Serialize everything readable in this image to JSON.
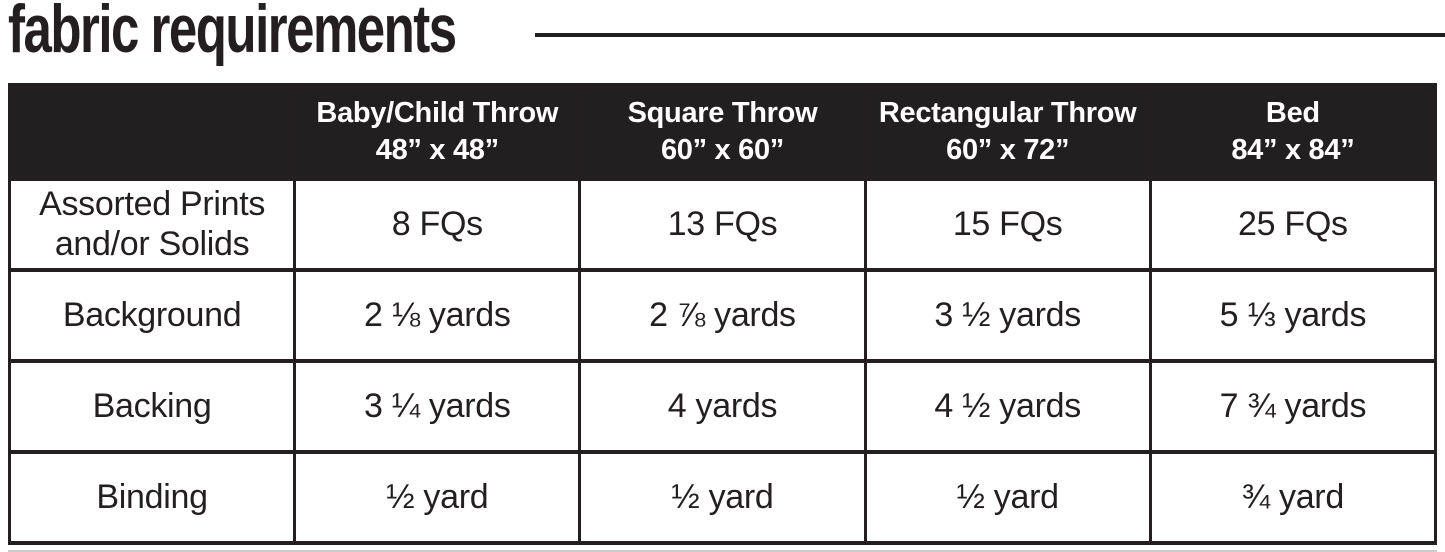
{
  "page": {
    "title": "fabric requirements"
  },
  "colors": {
    "header_bg": "#221f20",
    "text": "#231f20",
    "border": "#231f20",
    "header_text": "#ffffff"
  },
  "table": {
    "columns": [
      {
        "label": "Baby/Child Throw\n48” x 48”"
      },
      {
        "label": "Square Throw\n60” x 60”"
      },
      {
        "label": "Rectangular Throw\n60” x 72”"
      },
      {
        "label": "Bed\n84” x 84”"
      }
    ],
    "rows": [
      {
        "label": "Assorted Prints\nand/or Solids",
        "values": [
          "8 FQs",
          "13 FQs",
          "15 FQs",
          "25 FQs"
        ]
      },
      {
        "label": "Background",
        "values": [
          "2 ⅛ yards",
          "2 ⅞ yards",
          "3 ½ yards",
          "5 ⅓ yards"
        ]
      },
      {
        "label": "Backing",
        "values": [
          "3 ¼ yards",
          "4 yards",
          "4 ½ yards",
          "7 ¾ yards"
        ]
      },
      {
        "label": "Binding",
        "values": [
          "½ yard",
          "½ yard",
          "½ yard",
          "¾ yard"
        ]
      }
    ]
  }
}
